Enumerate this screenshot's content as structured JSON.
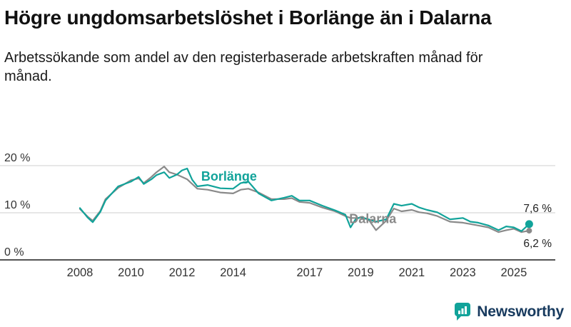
{
  "title": "Högre ungdomsarbetslöshet i Borlänge än i Dalarna",
  "subtitle": "Arbetssökande som andel av den registerbaserade arbetskraften månad för månad.",
  "brand": {
    "name": "Newsworthy",
    "text_color": "#173a5e",
    "icon_color": "#11a39a"
  },
  "chart_data": {
    "type": "line",
    "title": "Högre ungdomsarbetslöshet i Borlänge än i Dalarna",
    "subtitle": "Arbetssökande som andel av den registerbaserade arbetskraften månad för månad.",
    "xlabel": "",
    "ylabel": "",
    "unit": "%",
    "grid": "horizontal",
    "legend_position": "inline-annotations",
    "xlim": [
      2007.8,
      2025.8
    ],
    "ylim": [
      0,
      21.5
    ],
    "xtick_years": [
      2008,
      2010,
      2012,
      2014,
      2017,
      2019,
      2021,
      2023,
      2025
    ],
    "xtick_labels": [
      "2008",
      "2010",
      "2012",
      "2014",
      "2017",
      "2019",
      "2021",
      "2023",
      "2025"
    ],
    "yticks": [
      {
        "value": 20,
        "label": "20 %"
      },
      {
        "value": 10,
        "label": "10 %"
      },
      {
        "value": 0,
        "label": "0 %"
      }
    ],
    "x": [
      2008.0,
      2008.3,
      2008.5,
      2008.8,
      2009.0,
      2009.5,
      2010.0,
      2010.3,
      2010.5,
      2010.8,
      2011.0,
      2011.3,
      2011.5,
      2011.8,
      2012.0,
      2012.2,
      2012.4,
      2012.6,
      2013.0,
      2013.5,
      2014.0,
      2014.3,
      2014.6,
      2015.0,
      2015.5,
      2016.0,
      2016.3,
      2016.6,
      2017.0,
      2017.5,
      2018.0,
      2018.4,
      2018.6,
      2018.8,
      2019.0,
      2019.3,
      2019.6,
      2020.0,
      2020.3,
      2020.6,
      2021.0,
      2021.3,
      2021.6,
      2022.0,
      2022.5,
      2023.0,
      2023.3,
      2023.6,
      2024.0,
      2024.4,
      2024.7,
      2025.0,
      2025.3,
      2025.6
    ],
    "series": [
      {
        "key": "borlange",
        "name": "Borlänge",
        "color": "#11a39a",
        "end_label": "7,6 %",
        "end_label_side": "above",
        "values": [
          11.0,
          9.0,
          8.0,
          10.2,
          12.6,
          15.6,
          16.6,
          17.6,
          16.1,
          17.1,
          18.0,
          18.6,
          17.4,
          18.1,
          19.0,
          19.4,
          17.0,
          15.6,
          15.9,
          15.2,
          15.1,
          16.3,
          16.6,
          14.1,
          12.6,
          13.2,
          13.6,
          12.6,
          12.6,
          11.5,
          10.5,
          9.6,
          6.9,
          8.6,
          9.1,
          8.6,
          8.1,
          8.6,
          11.9,
          11.5,
          11.9,
          11.1,
          10.6,
          10.1,
          8.6,
          8.9,
          8.1,
          7.9,
          7.3,
          6.3,
          7.1,
          6.9,
          6.1,
          7.6
        ]
      },
      {
        "key": "dalarna",
        "name": "Dalarna",
        "color": "#8a8a8a",
        "end_label": "6,2 %",
        "end_label_side": "below",
        "values": [
          10.8,
          9.2,
          8.3,
          10.4,
          12.9,
          15.3,
          16.9,
          17.3,
          16.3,
          17.6,
          18.6,
          19.8,
          18.6,
          18.1,
          17.6,
          17.1,
          16.1,
          15.1,
          14.9,
          14.3,
          14.1,
          14.9,
          15.1,
          14.3,
          12.9,
          12.9,
          13.1,
          12.3,
          12.1,
          11.1,
          10.3,
          9.3,
          8.9,
          8.9,
          8.9,
          8.6,
          6.3,
          8.3,
          10.9,
          10.3,
          10.6,
          10.1,
          9.9,
          9.3,
          8.1,
          7.9,
          7.6,
          7.3,
          6.9,
          5.9,
          6.3,
          6.6,
          5.9,
          6.2
        ]
      }
    ],
    "annotations": [
      {
        "key": "borlange",
        "text": "Borlänge",
        "x": 2012.75,
        "y": 16.8,
        "color": "#11a39a"
      },
      {
        "key": "dalarna",
        "text": "Dalarna",
        "x": 2018.55,
        "y": 7.8,
        "color": "#8a8a8a"
      }
    ]
  }
}
